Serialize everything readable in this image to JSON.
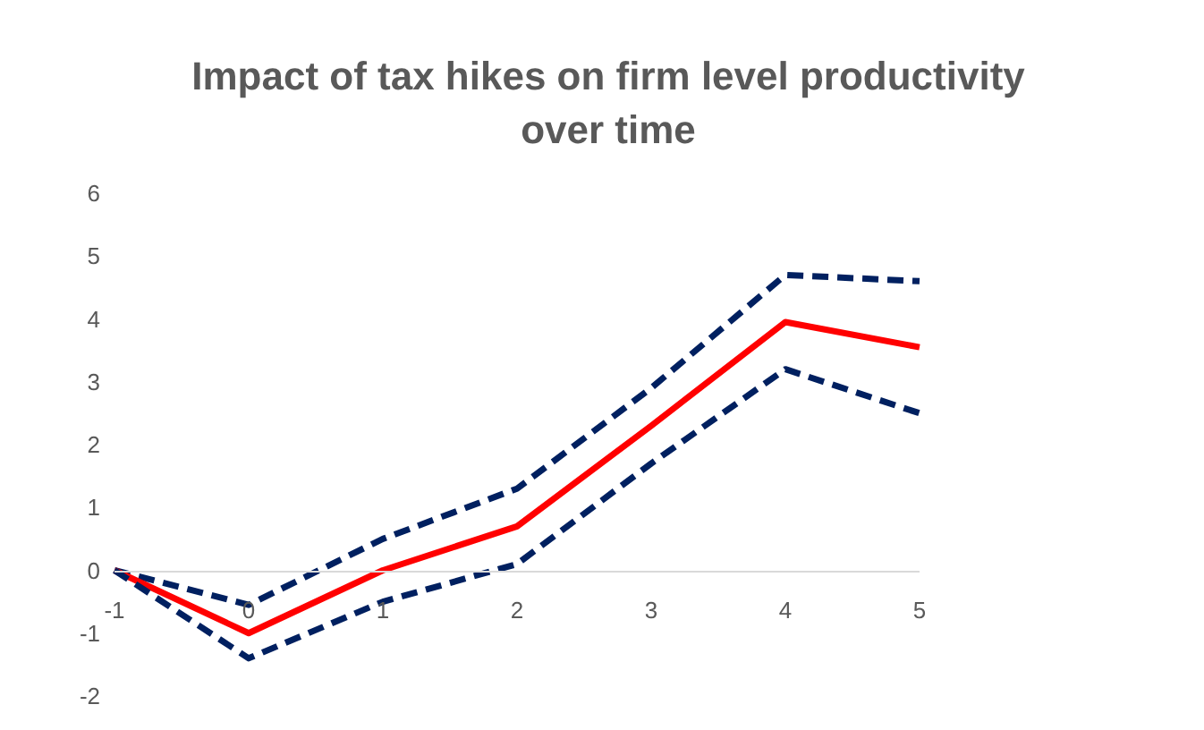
{
  "chart_data": {
    "type": "line",
    "title": "Impact of tax hikes on firm level productivity over time",
    "categories": [
      "-1",
      "0",
      "1",
      "2",
      "3",
      "4",
      "5"
    ],
    "series": [
      {
        "color": "#002060",
        "line_style": "dashed",
        "values": [
          0,
          -0.55,
          0.5,
          1.3,
          2.9,
          4.7,
          4.6
        ]
      },
      {
        "color": "#ff0000",
        "line_style": "solid",
        "values": [
          0,
          -1,
          0,
          0.7,
          2.3,
          3.95,
          3.55
        ]
      },
      {
        "color": "#002060",
        "line_style": "dashed",
        "values": [
          0,
          -1.4,
          -0.5,
          0.1,
          1.7,
          3.2,
          2.5
        ]
      }
    ],
    "ylim": [
      -2,
      6
    ],
    "yticks": [
      -2,
      -1,
      0,
      1,
      2,
      3,
      4,
      5,
      6
    ],
    "grid": false,
    "marker": "none"
  }
}
